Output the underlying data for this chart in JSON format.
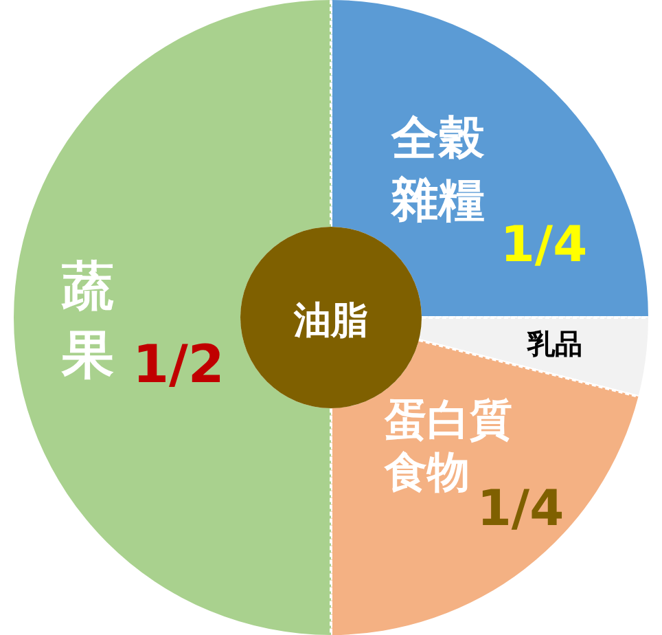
{
  "chart_data": {
    "type": "donut",
    "categories": [
      "全穀雜糧",
      "乳品",
      "蛋白質食物",
      "蔬果"
    ],
    "values": [
      25,
      4,
      21,
      50
    ],
    "colors": [
      "#5b9bd5",
      "#f2f2f2",
      "#f4b183",
      "#a9d18e"
    ],
    "annotations": [
      {
        "text": "1/4",
        "x": "全穀雜糧"
      },
      {
        "text": "1/4",
        "x": "蛋白質食物"
      },
      {
        "text": "1/2",
        "x": "蔬果"
      },
      "油脂"
    ]
  }
}
